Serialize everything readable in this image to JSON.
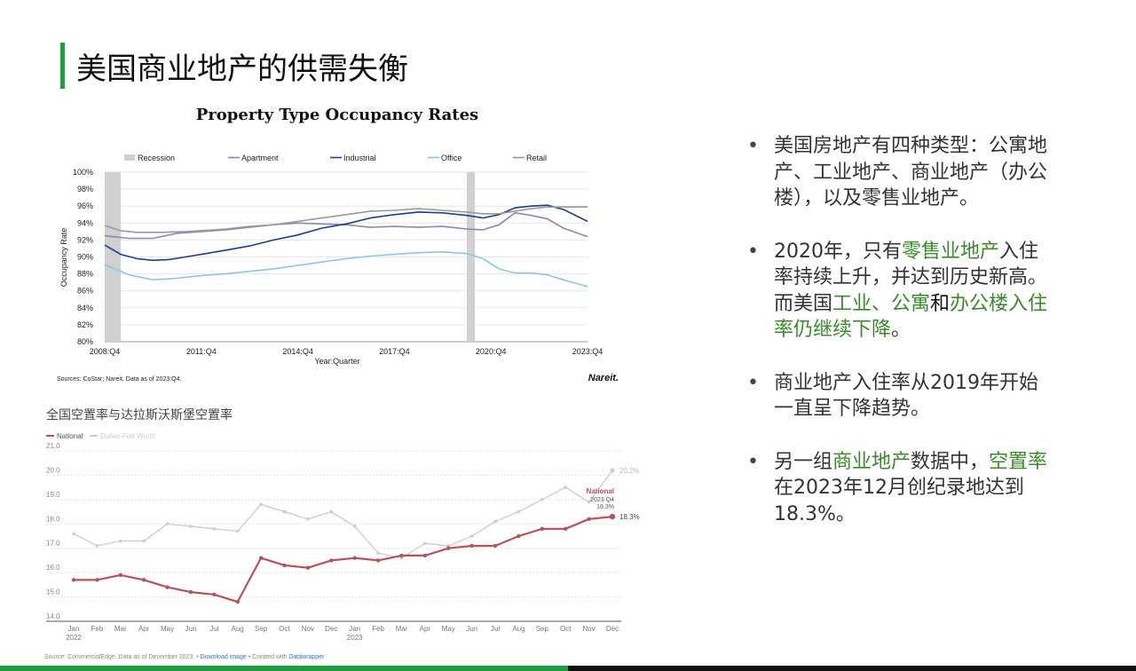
{
  "slide": {
    "title": "美国商业地产的供需失衡"
  },
  "bullets": [
    [
      {
        "t": "美国房地产有四种类型：公寓地产、工业地产、商业地产（办公楼），以及零售业地产。"
      }
    ],
    [
      {
        "t": "2020年，只有"
      },
      {
        "t": "零售业地产",
        "hl": true
      },
      {
        "t": "入住率持续上升，并达到历史新高。而美国"
      },
      {
        "t": "工业、公寓",
        "hl": true
      },
      {
        "t": "和",
        "dark": true
      },
      {
        "t": "办公楼入住率仍继续下降",
        "hl": true
      },
      {
        "t": "。"
      }
    ],
    [
      {
        "t": "商业地产入住率从2019年开始一直呈下降趋势。"
      }
    ],
    [
      {
        "t": "另一组"
      },
      {
        "t": "商业地产",
        "hl": true
      },
      {
        "t": "数据中，"
      },
      {
        "t": "空置率",
        "hl": true
      },
      {
        "t": "在2023年12月创纪录地达到18.3%。"
      }
    ]
  ],
  "colors": {
    "accent": "#1e9e3e",
    "highlight": "#3a8a2c"
  },
  "chart_data": [
    {
      "type": "line",
      "title": "Property Type Occupancy Rates",
      "xlabel": "Year:Quarter",
      "ylabel": "Occupancy Rate",
      "ylim": [
        80,
        100
      ],
      "yticks": [
        "80%",
        "82%",
        "84%",
        "86%",
        "88%",
        "90%",
        "92%",
        "94%",
        "96%",
        "98%",
        "100%"
      ],
      "xlim": [
        2008.75,
        2023.75
      ],
      "xticks": [
        {
          "x": 2008.75,
          "label": "2008:Q4"
        },
        {
          "x": 2011.75,
          "label": "2011:Q4"
        },
        {
          "x": 2014.75,
          "label": "2014:Q4"
        },
        {
          "x": 2017.75,
          "label": "2017:Q4"
        },
        {
          "x": 2020.75,
          "label": "2020:Q4"
        },
        {
          "x": 2023.75,
          "label": "2023:Q4"
        }
      ],
      "recessions": [
        [
          2008.75,
          2009.25
        ],
        [
          2020.0,
          2020.25
        ]
      ],
      "legend": [
        {
          "name": "Recession",
          "color": "#d0d0d0",
          "kind": "box"
        },
        {
          "name": "Apartment",
          "color": "#8a87b8",
          "kind": "line"
        },
        {
          "name": "Industrial",
          "color": "#1f3d8a",
          "kind": "line"
        },
        {
          "name": "Office",
          "color": "#8cc6e0",
          "kind": "line"
        },
        {
          "name": "Retail",
          "color": "#9a9a9a",
          "kind": "line"
        }
      ],
      "series": [
        {
          "name": "Apartment",
          "color": "#8a87b8",
          "points": [
            [
              2008.75,
              92.5
            ],
            [
              2009.5,
              92.2
            ],
            [
              2010.25,
              92.2
            ],
            [
              2011.0,
              92.8
            ],
            [
              2011.75,
              93.0
            ],
            [
              2012.5,
              93.2
            ],
            [
              2013.25,
              93.5
            ],
            [
              2014.0,
              93.8
            ],
            [
              2014.75,
              94.0
            ],
            [
              2015.5,
              93.9
            ],
            [
              2016.25,
              93.8
            ],
            [
              2017.0,
              93.5
            ],
            [
              2017.75,
              93.6
            ],
            [
              2018.5,
              93.5
            ],
            [
              2019.25,
              93.6
            ],
            [
              2020.0,
              93.3
            ],
            [
              2020.5,
              93.2
            ],
            [
              2021.0,
              93.8
            ],
            [
              2021.5,
              95.2
            ],
            [
              2022.0,
              94.9
            ],
            [
              2022.5,
              94.5
            ],
            [
              2023.0,
              93.4
            ],
            [
              2023.75,
              92.4
            ]
          ]
        },
        {
          "name": "Industrial",
          "color": "#1f3d8a",
          "points": [
            [
              2008.75,
              91.4
            ],
            [
              2009.25,
              90.3
            ],
            [
              2009.75,
              89.8
            ],
            [
              2010.25,
              89.6
            ],
            [
              2010.75,
              89.7
            ],
            [
              2011.25,
              90.0
            ],
            [
              2011.75,
              90.3
            ],
            [
              2012.5,
              90.8
            ],
            [
              2013.25,
              91.3
            ],
            [
              2014.0,
              92.0
            ],
            [
              2014.75,
              92.6
            ],
            [
              2015.5,
              93.4
            ],
            [
              2016.25,
              93.9
            ],
            [
              2017.0,
              94.6
            ],
            [
              2017.75,
              95.0
            ],
            [
              2018.5,
              95.3
            ],
            [
              2019.25,
              95.2
            ],
            [
              2020.0,
              94.9
            ],
            [
              2020.5,
              94.6
            ],
            [
              2021.0,
              95.0
            ],
            [
              2021.5,
              95.8
            ],
            [
              2022.0,
              96.0
            ],
            [
              2022.5,
              96.1
            ],
            [
              2023.0,
              95.6
            ],
            [
              2023.75,
              94.2
            ]
          ]
        },
        {
          "name": "Office",
          "color": "#8cc6e0",
          "points": [
            [
              2008.75,
              89.1
            ],
            [
              2009.5,
              87.9
            ],
            [
              2010.25,
              87.3
            ],
            [
              2011.0,
              87.5
            ],
            [
              2011.75,
              87.8
            ],
            [
              2012.5,
              88.0
            ],
            [
              2013.25,
              88.3
            ],
            [
              2014.0,
              88.6
            ],
            [
              2014.75,
              89.0
            ],
            [
              2015.5,
              89.4
            ],
            [
              2016.25,
              89.8
            ],
            [
              2017.0,
              90.1
            ],
            [
              2017.75,
              90.3
            ],
            [
              2018.5,
              90.5
            ],
            [
              2019.25,
              90.6
            ],
            [
              2020.0,
              90.4
            ],
            [
              2020.5,
              89.8
            ],
            [
              2021.0,
              88.6
            ],
            [
              2021.5,
              88.1
            ],
            [
              2022.0,
              88.1
            ],
            [
              2022.5,
              87.9
            ],
            [
              2023.0,
              87.3
            ],
            [
              2023.75,
              86.5
            ]
          ]
        },
        {
          "name": "Retail",
          "color": "#9a9a9a",
          "points": [
            [
              2008.75,
              93.7
            ],
            [
              2009.25,
              93.1
            ],
            [
              2009.75,
              92.9
            ],
            [
              2010.5,
              92.9
            ],
            [
              2011.25,
              93.0
            ],
            [
              2011.75,
              93.1
            ],
            [
              2012.5,
              93.3
            ],
            [
              2013.25,
              93.6
            ],
            [
              2014.0,
              93.8
            ],
            [
              2014.75,
              94.2
            ],
            [
              2015.5,
              94.6
            ],
            [
              2016.25,
              95.0
            ],
            [
              2017.0,
              95.4
            ],
            [
              2017.75,
              95.5
            ],
            [
              2018.5,
              95.7
            ],
            [
              2019.25,
              95.5
            ],
            [
              2020.0,
              95.3
            ],
            [
              2020.5,
              95.1
            ],
            [
              2021.0,
              95.1
            ],
            [
              2021.5,
              95.4
            ],
            [
              2022.0,
              95.7
            ],
            [
              2022.5,
              95.9
            ],
            [
              2023.0,
              95.9
            ],
            [
              2023.75,
              95.9
            ]
          ]
        }
      ],
      "source": "Sources: CoStar; Nareit. Data as of 2023:Q4.",
      "brand": "Nareit."
    },
    {
      "type": "line",
      "title": "全国空置率与达拉斯沃斯堡空置率",
      "ylim": [
        14.0,
        21.0
      ],
      "yticks": [
        "14.0",
        "15.0",
        "16.0",
        "17.0",
        "18.0",
        "19.0",
        "20.0",
        "21.0"
      ],
      "categories": [
        "Jan",
        "Feb",
        "Mar",
        "Apr",
        "May",
        "Jun",
        "Jul",
        "Aug",
        "Sep",
        "Oct",
        "Nov",
        "Dec",
        "Jan",
        "Feb",
        "Mar",
        "Apr",
        "May",
        "Jun",
        "Jul",
        "Aug",
        "Sep",
        "Oct",
        "Nov",
        "Dec"
      ],
      "year_labels": [
        {
          "index": 0,
          "label": "2022"
        },
        {
          "index": 12,
          "label": "2023"
        }
      ],
      "series": [
        {
          "name": "National",
          "color": "#b5525e",
          "values": [
            15.7,
            15.7,
            15.9,
            15.7,
            15.4,
            15.2,
            15.1,
            14.8,
            16.6,
            16.3,
            16.2,
            16.5,
            16.6,
            16.5,
            16.7,
            16.7,
            17.0,
            17.1,
            17.1,
            17.5,
            17.8,
            17.8,
            18.2,
            18.3
          ]
        },
        {
          "name": "Dallas-Fort Worth",
          "color": "#cfcfcf",
          "values": [
            17.6,
            17.1,
            17.3,
            17.3,
            18.0,
            17.9,
            17.8,
            17.7,
            18.8,
            18.5,
            18.2,
            18.5,
            17.9,
            16.8,
            16.6,
            17.2,
            17.1,
            17.5,
            18.1,
            18.5,
            19.0,
            19.5,
            18.9,
            20.2
          ]
        }
      ],
      "end_labels": {
        "national": "18.3%",
        "dfw": "20.2%"
      },
      "annotation": {
        "name": "National",
        "date": "2023 Q4",
        "value": "18.3%"
      },
      "source_text": "Source: CommercialEdge. Data as of December 2023. •",
      "download_link": "Download image",
      "created_text": "• Created with",
      "datawrapper_link": "Datawrapper"
    }
  ]
}
